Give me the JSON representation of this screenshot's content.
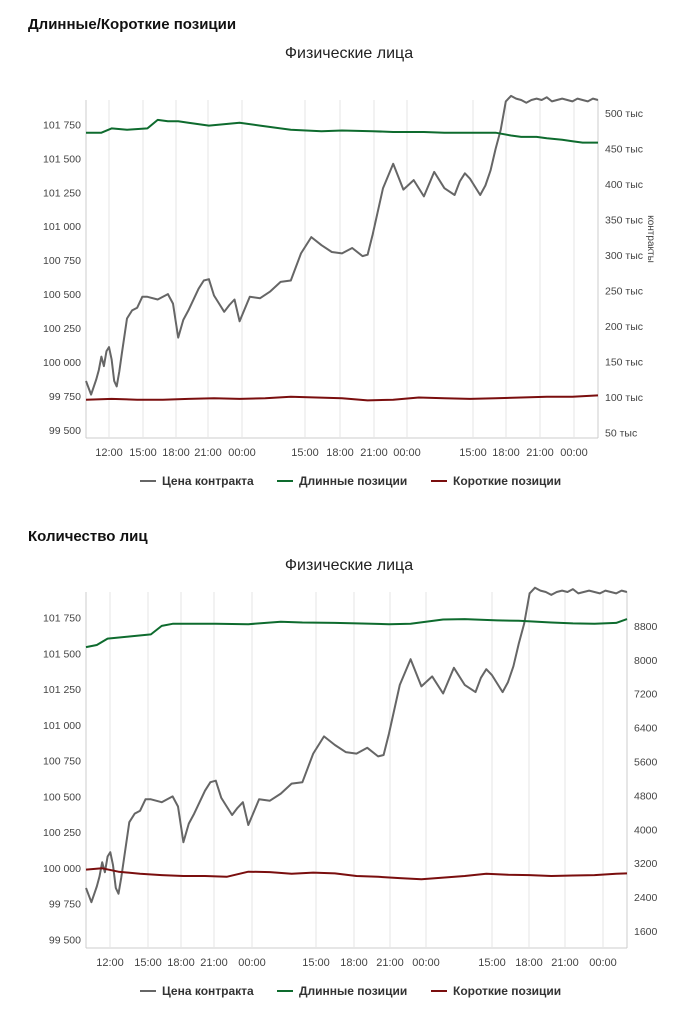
{
  "sections": [
    {
      "heading": "Длинные/Короткие позиции"
    },
    {
      "heading": "Количество лиц"
    }
  ],
  "legend": {
    "price": "Цена контракта",
    "long": "Длинные позиции",
    "short": "Короткие позиции"
  },
  "colors": {
    "price": "#666666",
    "long": "#0e6b2e",
    "short": "#7a0e0e",
    "grid": "#e6e6e6",
    "axis_text": "#444444"
  },
  "chart_data": [
    {
      "type": "line",
      "title": "Физические лица",
      "x_tick_labels": [
        "12:00",
        "15:00",
        "18:00",
        "21:00",
        "00:00",
        "15:00",
        "18:00",
        "21:00",
        "00:00",
        "15:00",
        "18:00",
        "21:00",
        "00:00"
      ],
      "left_axis": {
        "ylim": [
          99440,
          101930
        ],
        "ticks": [
          99500,
          99750,
          100000,
          100250,
          100500,
          100750,
          101000,
          101250,
          101500,
          101750
        ],
        "tick_labels": [
          "99 500",
          "99 750",
          "100 000",
          "100 250",
          "100 500",
          "100 750",
          "101 000",
          "101 250",
          "101 500",
          "101 750"
        ]
      },
      "right_axis": {
        "label": "контракты",
        "ylim": [
          42000,
          518000
        ],
        "ticks": [
          50000,
          100000,
          150000,
          200000,
          250000,
          300000,
          350000,
          400000,
          450000,
          500000
        ],
        "tick_labels": [
          "50 тыс",
          "100 тыс",
          "150 тыс",
          "200 тыс",
          "250 тыс",
          "300 тыс",
          "350 тыс",
          "400 тыс",
          "450 тыс",
          "500 тыс"
        ]
      },
      "series": [
        {
          "name": "Цена контракта",
          "axis": "left",
          "key": "price",
          "x": [
            0,
            1,
            2,
            2.5,
            3,
            3.5,
            4,
            4.5,
            5,
            5.5,
            6,
            6.5,
            7,
            8,
            9,
            10,
            11,
            12,
            14,
            16,
            17,
            18,
            19,
            20,
            22,
            23,
            24,
            25,
            26,
            27,
            28,
            29,
            30,
            32,
            34,
            36,
            38,
            40,
            42,
            44,
            46,
            48,
            50,
            52,
            54,
            55,
            56,
            58,
            60,
            62,
            64,
            66,
            68,
            70,
            72,
            73,
            74,
            75,
            76,
            77,
            78,
            79,
            80,
            81,
            82,
            83,
            84,
            85,
            86,
            87,
            88,
            89,
            90,
            91,
            92,
            93,
            94,
            95,
            96,
            97,
            98,
            99,
            100
          ],
          "values": [
            99860,
            99760,
            99870,
            99940,
            100040,
            99970,
            100080,
            100110,
            100020,
            99860,
            99820,
            99930,
            100060,
            100320,
            100380,
            100400,
            100480,
            100480,
            100460,
            100500,
            100430,
            100180,
            100310,
            100380,
            100540,
            100600,
            100610,
            100490,
            100430,
            100370,
            100420,
            100460,
            100300,
            100480,
            100470,
            100520,
            100590,
            100600,
            100800,
            100920,
            100860,
            100810,
            100800,
            100840,
            100780,
            100790,
            100940,
            101280,
            101460,
            101270,
            101340,
            101220,
            101400,
            101280,
            101230,
            101330,
            101390,
            101350,
            101290,
            101230,
            101300,
            101410,
            101570,
            101710,
            101920,
            101960,
            101940,
            101930,
            101910,
            101930,
            101940,
            101930,
            101950,
            101920,
            101930,
            101940,
            101930,
            101920,
            101940,
            101930,
            101920,
            101940,
            101930
          ]
        },
        {
          "name": "Длинные позиции",
          "axis": "right",
          "key": "long",
          "x": [
            0,
            3,
            5,
            8,
            12,
            14,
            16,
            18,
            20,
            24,
            30,
            34,
            36,
            40,
            46,
            50,
            56,
            60,
            66,
            70,
            76,
            80,
            83,
            85,
            88,
            90,
            93,
            95,
            97,
            100
          ],
          "values": [
            472000,
            472000,
            478000,
            476000,
            478000,
            490000,
            488000,
            488000,
            486000,
            482000,
            486000,
            482000,
            480000,
            476000,
            474000,
            475000,
            474000,
            473000,
            473000,
            472000,
            472000,
            472000,
            468000,
            466000,
            466000,
            464000,
            462000,
            460000,
            458000,
            458000
          ]
        },
        {
          "name": "Короткие позиции",
          "axis": "right",
          "key": "short",
          "x": [
            0,
            5,
            10,
            15,
            20,
            25,
            30,
            35,
            40,
            45,
            50,
            55,
            60,
            65,
            70,
            75,
            80,
            85,
            90,
            95,
            100
          ],
          "values": [
            96000,
            97000,
            96000,
            96000,
            97000,
            98000,
            97000,
            98000,
            100000,
            99000,
            98000,
            95000,
            96000,
            99000,
            98000,
            97000,
            98000,
            99000,
            100000,
            100000,
            102000
          ]
        }
      ]
    },
    {
      "type": "line",
      "title": "Физические лица",
      "x_tick_labels": [
        "12:00",
        "15:00",
        "18:00",
        "21:00",
        "00:00",
        "15:00",
        "18:00",
        "21:00",
        "00:00",
        "15:00",
        "18:00",
        "21:00",
        "00:00"
      ],
      "left_axis": {
        "ylim": [
          99440,
          101930
        ],
        "ticks": [
          99500,
          99750,
          100000,
          100250,
          100500,
          100750,
          101000,
          101250,
          101500,
          101750
        ],
        "tick_labels": [
          "99 500",
          "99 750",
          "100 000",
          "100 250",
          "100 500",
          "100 750",
          "101 000",
          "101 250",
          "101 500",
          "101 750"
        ]
      },
      "right_axis": {
        "label": "",
        "ylim": [
          1200,
          9600
        ],
        "ticks": [
          1600,
          2400,
          3200,
          4000,
          4800,
          5600,
          6400,
          7200,
          8000,
          8800
        ],
        "tick_labels": [
          "1600",
          "2400",
          "3200",
          "4000",
          "4800",
          "5600",
          "6400",
          "7200",
          "8000",
          "8800"
        ]
      },
      "series": [
        {
          "name": "Цена контракта",
          "axis": "left",
          "key": "price",
          "x": [
            0,
            1,
            2,
            2.5,
            3,
            3.5,
            4,
            4.5,
            5,
            5.5,
            6,
            6.5,
            7,
            8,
            9,
            10,
            11,
            12,
            14,
            16,
            17,
            18,
            19,
            20,
            22,
            23,
            24,
            25,
            26,
            27,
            28,
            29,
            30,
            32,
            34,
            36,
            38,
            40,
            42,
            44,
            46,
            48,
            50,
            52,
            54,
            55,
            56,
            58,
            60,
            62,
            64,
            66,
            68,
            70,
            72,
            73,
            74,
            75,
            76,
            77,
            78,
            79,
            80,
            81,
            82,
            83,
            84,
            85,
            86,
            87,
            88,
            89,
            90,
            91,
            92,
            93,
            94,
            95,
            96,
            97,
            98,
            99,
            100
          ],
          "values": [
            99860,
            99760,
            99870,
            99940,
            100040,
            99970,
            100080,
            100110,
            100020,
            99860,
            99820,
            99930,
            100060,
            100320,
            100380,
            100400,
            100480,
            100480,
            100460,
            100500,
            100430,
            100180,
            100310,
            100380,
            100540,
            100600,
            100610,
            100490,
            100430,
            100370,
            100420,
            100460,
            100300,
            100480,
            100470,
            100520,
            100590,
            100600,
            100800,
            100920,
            100860,
            100810,
            100800,
            100840,
            100780,
            100790,
            100940,
            101280,
            101460,
            101270,
            101340,
            101220,
            101400,
            101280,
            101230,
            101330,
            101390,
            101350,
            101290,
            101230,
            101300,
            101410,
            101570,
            101710,
            101920,
            101960,
            101940,
            101930,
            101910,
            101930,
            101940,
            101930,
            101950,
            101920,
            101930,
            101940,
            101930,
            101920,
            101940,
            101930,
            101920,
            101940,
            101930
          ]
        },
        {
          "name": "Длинные позиции",
          "axis": "right",
          "key": "long",
          "x": [
            0,
            2,
            4,
            8,
            12,
            14,
            16,
            20,
            24,
            30,
            36,
            40,
            46,
            50,
            56,
            60,
            66,
            70,
            76,
            80,
            86,
            90,
            94,
            98,
            100
          ],
          "values": [
            8300,
            8350,
            8500,
            8550,
            8600,
            8800,
            8850,
            8850,
            8850,
            8840,
            8900,
            8880,
            8870,
            8860,
            8840,
            8850,
            8950,
            8960,
            8930,
            8920,
            8880,
            8860,
            8850,
            8870,
            8960
          ]
        },
        {
          "name": "Короткие позиции",
          "axis": "right",
          "key": "short",
          "x": [
            0,
            3,
            6,
            10,
            14,
            18,
            22,
            26,
            30,
            34,
            38,
            42,
            46,
            50,
            54,
            58,
            62,
            66,
            70,
            74,
            78,
            82,
            86,
            90,
            94,
            98,
            100
          ],
          "values": [
            3050,
            3080,
            3000,
            2950,
            2920,
            2900,
            2900,
            2880,
            3000,
            2990,
            2950,
            2980,
            2960,
            2900,
            2880,
            2850,
            2820,
            2860,
            2900,
            2950,
            2930,
            2920,
            2900,
            2910,
            2920,
            2950,
            2960
          ]
        }
      ]
    }
  ]
}
